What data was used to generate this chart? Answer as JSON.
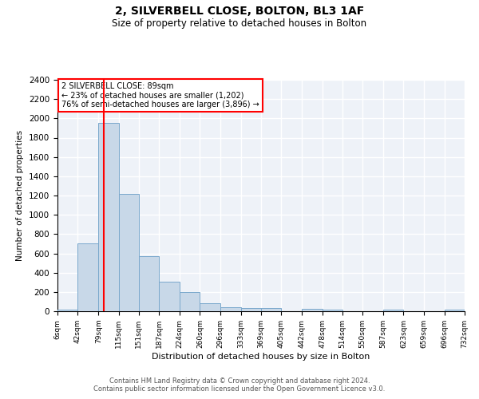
{
  "title": "2, SILVERBELL CLOSE, BOLTON, BL3 1AF",
  "subtitle": "Size of property relative to detached houses in Bolton",
  "xlabel": "Distribution of detached houses by size in Bolton",
  "ylabel": "Number of detached properties",
  "bar_color": "#c8d8e8",
  "bar_edge_color": "#7aa8cc",
  "background_color": "#eef2f8",
  "grid_color": "white",
  "annotation_line1": "2 SILVERBELL CLOSE: 89sqm",
  "annotation_line2": "← 23% of detached houses are smaller (1,202)",
  "annotation_line3": "76% of semi-detached houses are larger (3,896) →",
  "red_line_x": 89,
  "bin_edges": [
    6,
    42,
    79,
    115,
    151,
    187,
    224,
    260,
    296,
    333,
    369,
    405,
    442,
    478,
    514,
    550,
    587,
    623,
    659,
    696,
    732
  ],
  "bin_counts": [
    20,
    700,
    1950,
    1220,
    570,
    305,
    200,
    85,
    45,
    35,
    35,
    0,
    25,
    20,
    0,
    0,
    15,
    0,
    0,
    15
  ],
  "ylim": [
    0,
    2400
  ],
  "yticks": [
    0,
    200,
    400,
    600,
    800,
    1000,
    1200,
    1400,
    1600,
    1800,
    2000,
    2200,
    2400
  ],
  "footer_text": "Contains HM Land Registry data © Crown copyright and database right 2024.\nContains public sector information licensed under the Open Government Licence v3.0.",
  "annotation_box_color": "white",
  "annotation_box_edge_color": "red"
}
